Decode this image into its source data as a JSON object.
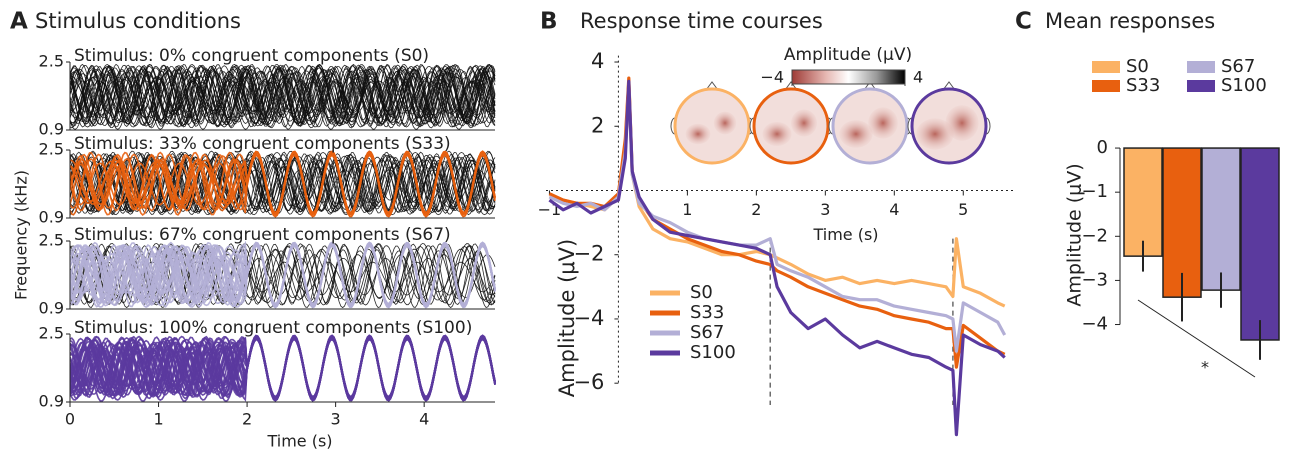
{
  "chart_data": [
    {
      "type": "stimulus",
      "panel_label": "A",
      "title": "Stimulus conditions",
      "ylabel": "Frequency (kHz)",
      "xlabel": "Time (s)",
      "xlim": [
        0,
        4.8
      ],
      "xticks": [
        0,
        1,
        2,
        3,
        4
      ],
      "ylim": [
        0.9,
        2.5
      ],
      "yticks": [
        0.9,
        2.5
      ],
      "panels": [
        {
          "title": "Stimulus: 0% congruent components (S0)",
          "color": "#fbb264"
        },
        {
          "title": "Stimulus: 33% congruent components (S33)",
          "color": "#e8600f"
        },
        {
          "title": "Stimulus: 67% congruent components (S67)",
          "color": "#b3afd6"
        },
        {
          "title": "Stimulus: 100% congruent components (S100)",
          "color": "#5b3a9e"
        }
      ]
    },
    {
      "type": "line",
      "panel_label": "B",
      "title": "Response time courses",
      "xlabel": "Time (s)",
      "ylabel": "Amplitude (μV)",
      "x": [
        -1,
        -0.8,
        -0.6,
        -0.4,
        -0.2,
        0,
        0.1,
        0.15,
        0.2,
        0.3,
        0.5,
        0.75,
        1,
        1.25,
        1.5,
        1.75,
        2,
        2.2,
        2.3,
        2.5,
        2.75,
        3,
        3.25,
        3.5,
        3.75,
        4,
        4.25,
        4.5,
        4.75,
        4.85,
        4.9,
        5,
        5.25,
        5.5,
        5.6
      ],
      "series": [
        {
          "name": "S0",
          "color": "#fbb264",
          "values": [
            -0.2,
            -0.3,
            -0.4,
            -0.5,
            -0.6,
            -0.2,
            1.5,
            3.4,
            0.5,
            -0.5,
            -1.2,
            -1.5,
            -1.6,
            -1.8,
            -2.0,
            -2.0,
            -1.9,
            -2.0,
            -2.1,
            -2.3,
            -2.6,
            -2.8,
            -2.7,
            -2.9,
            -2.8,
            -2.9,
            -2.8,
            -2.9,
            -3.0,
            -3.3,
            -1.5,
            -3.0,
            -3.2,
            -3.5,
            -3.6
          ]
        },
        {
          "name": "S33",
          "color": "#e8600f",
          "values": [
            -0.1,
            -0.3,
            -0.4,
            -0.4,
            -0.5,
            -0.1,
            1.6,
            3.5,
            0.6,
            -0.3,
            -0.9,
            -1.2,
            -1.5,
            -1.7,
            -1.9,
            -2.0,
            -2.2,
            -2.3,
            -2.5,
            -2.7,
            -3.0,
            -3.2,
            -3.4,
            -3.6,
            -3.7,
            -3.9,
            -4.0,
            -4.1,
            -4.3,
            -4.3,
            -5.5,
            -4.2,
            -4.6,
            -5.0,
            -5.1
          ]
        },
        {
          "name": "S67",
          "color": "#b3afd6",
          "values": [
            -0.2,
            -0.4,
            -0.5,
            -0.4,
            -0.6,
            -0.2,
            1.2,
            3.3,
            0.5,
            -0.4,
            -0.8,
            -1.0,
            -1.3,
            -1.5,
            -1.6,
            -1.7,
            -1.7,
            -1.5,
            -2.3,
            -2.5,
            -2.7,
            -3.0,
            -3.3,
            -3.4,
            -3.4,
            -3.6,
            -3.7,
            -3.8,
            -3.9,
            -4.0,
            -5.0,
            -3.5,
            -3.8,
            -4.1,
            -4.5
          ]
        },
        {
          "name": "S100",
          "color": "#5b3a9e",
          "values": [
            -0.3,
            -0.6,
            -0.4,
            -0.7,
            -0.5,
            -0.3,
            1.0,
            3.4,
            0.6,
            -0.2,
            -0.9,
            -1.3,
            -1.4,
            -1.5,
            -1.6,
            -1.7,
            -1.8,
            -2.0,
            -3.0,
            -3.8,
            -4.3,
            -4.0,
            -4.5,
            -4.9,
            -4.7,
            -4.9,
            -5.1,
            -5.2,
            -5.5,
            -5.6,
            -7.6,
            -4.5,
            -4.8,
            -5.0,
            -5.2
          ]
        }
      ],
      "xlim": [
        -1.05,
        5.75
      ],
      "xticks": [
        {
          "value": -1,
          "label": "−1"
        },
        1,
        2,
        3,
        4,
        5
      ],
      "ylim": [
        -7.8,
        4.2
      ],
      "yticks": [
        {
          "value": -6,
          "label": "−6"
        },
        {
          "value": -4,
          "label": "−4"
        },
        {
          "value": -2,
          "label": "−2"
        },
        2,
        4
      ],
      "event_lines": [
        0,
        2.2,
        4.85
      ],
      "colorbar": {
        "label": "Amplitude (μV)",
        "lim": [
          -4,
          4
        ],
        "ticks": [
          {
            "value": -4,
            "label": "−4"
          },
          4
        ]
      }
    },
    {
      "type": "bar",
      "panel_label": "C",
      "title": "Mean responses",
      "ylabel": "Amplitude (μV)",
      "categories": [
        "S0",
        "S33",
        "S67",
        "S100"
      ],
      "values": [
        -2.45,
        -3.38,
        -3.22,
        -4.35
      ],
      "errors": [
        0.35,
        0.55,
        0.4,
        0.45
      ],
      "colors": [
        "#fbb264",
        "#e8600f",
        "#b3afd6",
        "#5b3a9e"
      ],
      "ylim": [
        -4.6,
        0.5
      ],
      "yticks": [
        0,
        {
          "value": -1,
          "label": "−1"
        },
        {
          "value": -2,
          "label": "−2"
        },
        {
          "value": -3,
          "label": "−3"
        },
        {
          "value": -4,
          "label": "−4"
        }
      ],
      "annotation": "*"
    }
  ]
}
